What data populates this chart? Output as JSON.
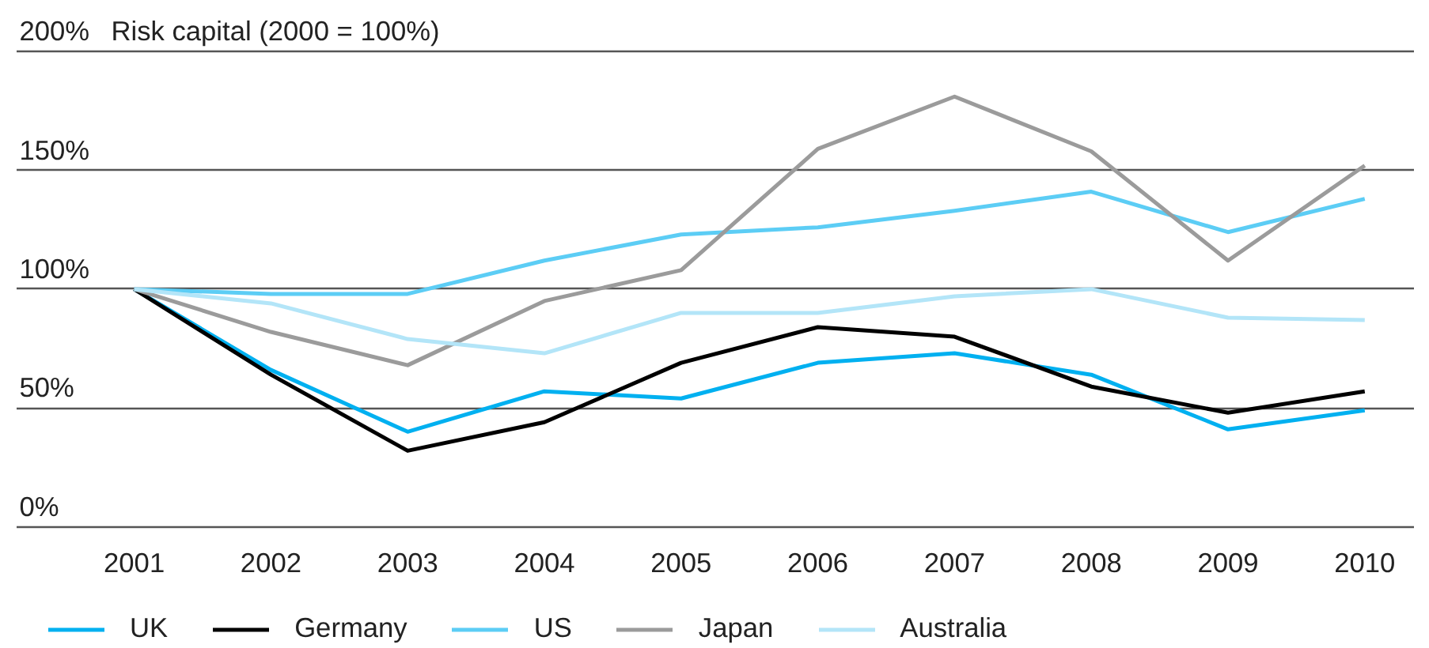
{
  "chart_data": {
    "type": "line",
    "ylabel": "Risk capital (2000 = 100%)",
    "categories": [
      "2001",
      "2002",
      "2003",
      "2004",
      "2005",
      "2006",
      "2007",
      "2008",
      "2009",
      "2010"
    ],
    "ylim": [
      0,
      200
    ],
    "yticks": [
      {
        "value": 0,
        "label": "0%"
      },
      {
        "value": 50,
        "label": "50%"
      },
      {
        "value": 100,
        "label": "100%"
      },
      {
        "value": 150,
        "label": "150%"
      },
      {
        "value": 200,
        "label": "200%"
      }
    ],
    "grid": "y",
    "legend": "bottom",
    "marker": "none",
    "line_style": "solid",
    "series": [
      {
        "name": "UK",
        "color": "#00b0f0",
        "values": [
          100,
          66,
          40,
          57,
          54,
          69,
          73,
          64,
          41,
          49
        ]
      },
      {
        "name": "Germany",
        "color": "#000000",
        "values": [
          100,
          64,
          32,
          44,
          69,
          84,
          80,
          59,
          48,
          57
        ]
      },
      {
        "name": "US",
        "color": "#5ccdf5",
        "values": [
          100,
          98,
          98,
          112,
          123,
          126,
          133,
          141,
          124,
          138
        ]
      },
      {
        "name": "Japan",
        "color": "#9b9b9b",
        "values": [
          100,
          82,
          68,
          95,
          108,
          159,
          181,
          158,
          112,
          152
        ]
      },
      {
        "name": "Australia",
        "color": "#b3e5f8",
        "values": [
          100,
          94,
          79,
          73,
          90,
          90,
          97,
          100,
          88,
          87
        ]
      }
    ]
  }
}
